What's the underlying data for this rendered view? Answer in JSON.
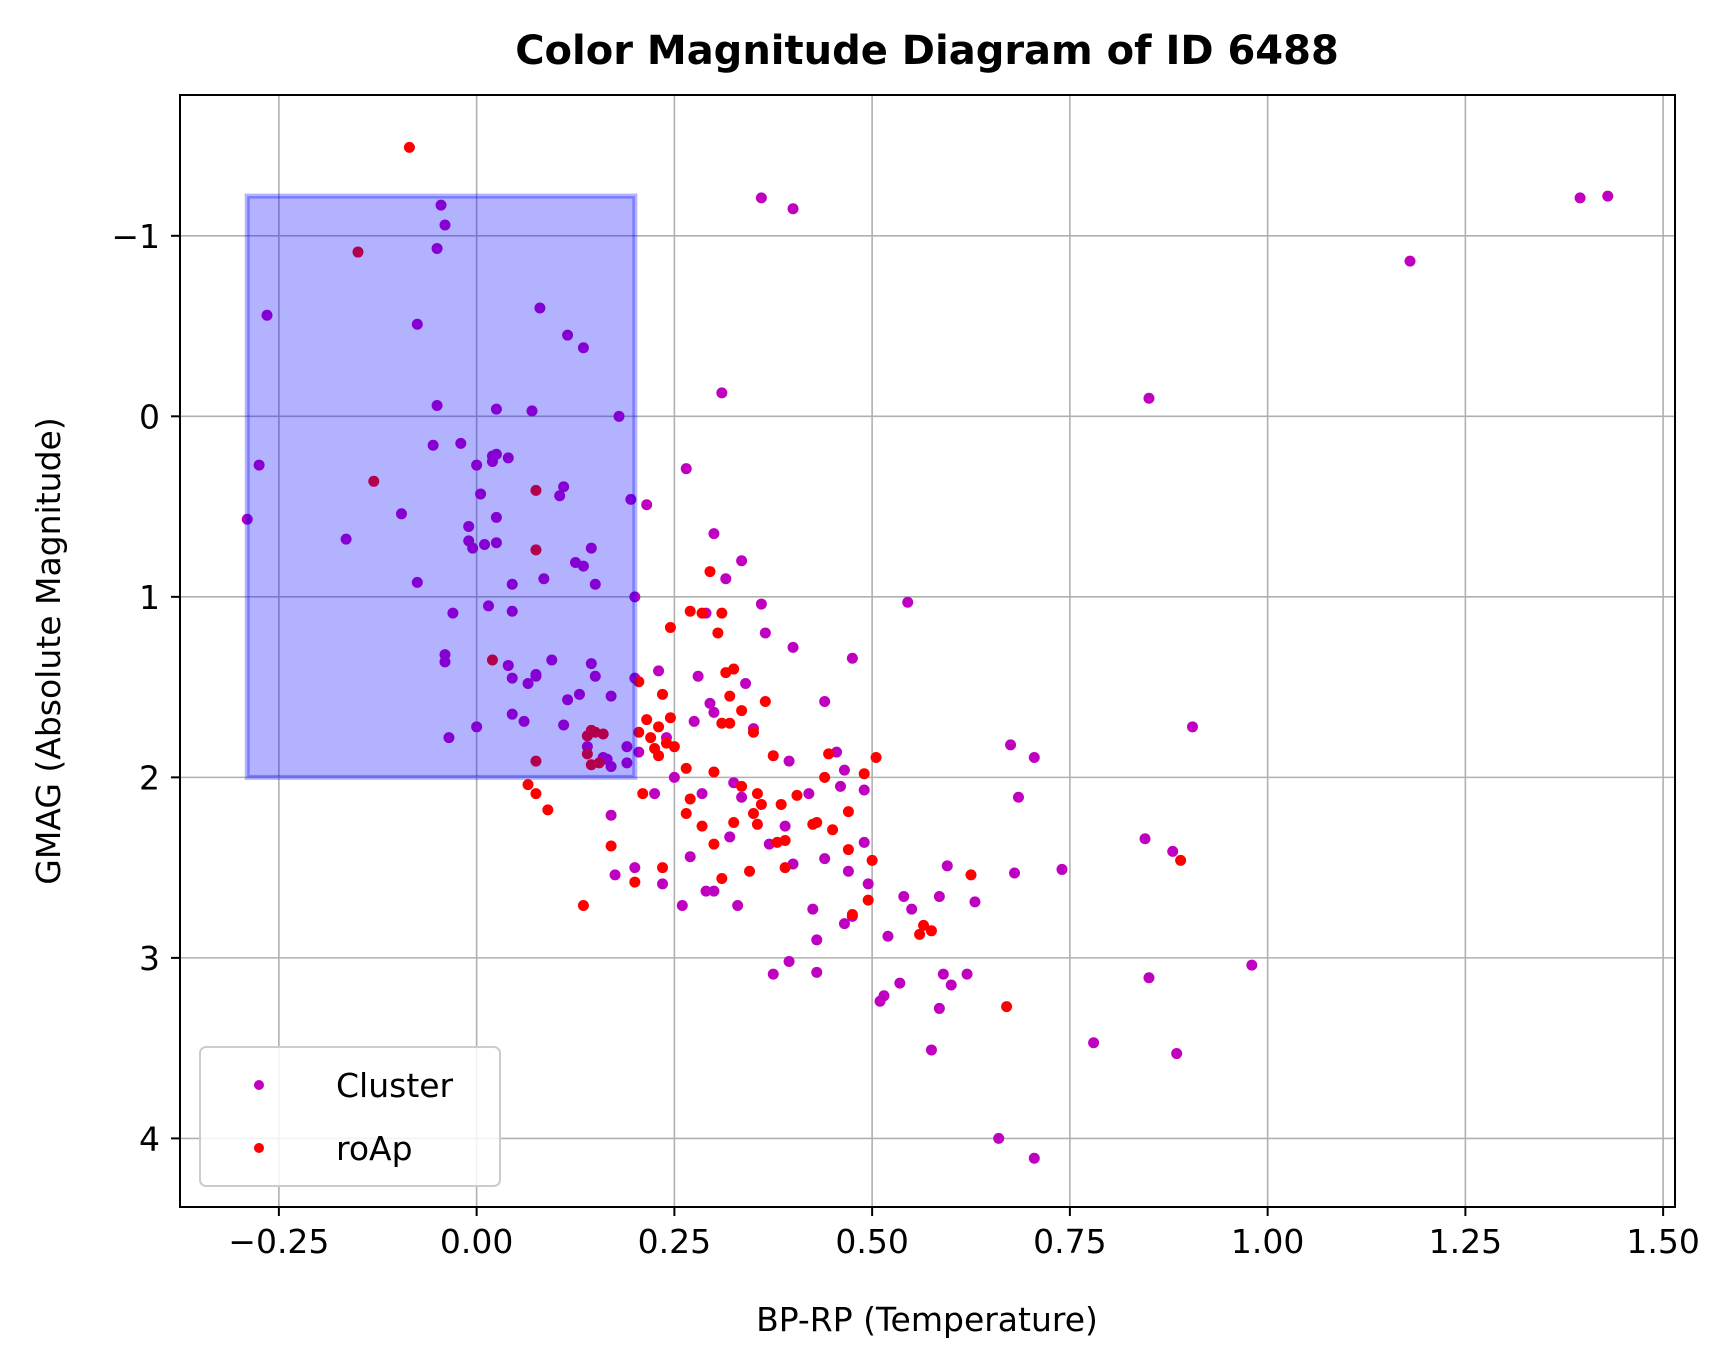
{
  "chart_data": {
    "type": "scatter",
    "title": "Color Magnitude Diagram of ID 6488",
    "xlabel": "BP-RP (Temperature)",
    "ylabel": "GMAG (Absolute Magnitude)",
    "xlim": [
      -0.375,
      1.515
    ],
    "ylim": [
      4.38,
      -1.78
    ],
    "y_inverted": true,
    "grid": true,
    "legend_position": "lower-left",
    "x_ticks": [
      -0.25,
      0.0,
      0.25,
      0.5,
      0.75,
      1.0,
      1.25,
      1.5
    ],
    "x_tick_labels": [
      "−0.25",
      "0.00",
      "0.25",
      "0.50",
      "0.75",
      "1.00",
      "1.25",
      "1.50"
    ],
    "y_ticks": [
      -1,
      0,
      1,
      2,
      3,
      4
    ],
    "y_tick_labels": [
      "−1",
      "0",
      "1",
      "2",
      "3",
      "4"
    ],
    "highlight_region": {
      "x": [
        -0.29,
        0.2
      ],
      "y": [
        -1.22,
        2.0
      ],
      "color": "#0000ff",
      "opacity": 0.3
    },
    "series": [
      {
        "name": "Cluster",
        "color": "#c000c0",
        "points": [
          [
            -0.29,
            0.57
          ],
          [
            -0.275,
            0.27
          ],
          [
            -0.265,
            -0.56
          ],
          [
            -0.165,
            0.68
          ],
          [
            -0.075,
            0.92
          ],
          [
            -0.075,
            -0.51
          ],
          [
            -0.095,
            0.54
          ],
          [
            -0.05,
            -0.06
          ],
          [
            -0.055,
            0.16
          ],
          [
            -0.045,
            -1.17
          ],
          [
            -0.04,
            -1.06
          ],
          [
            -0.05,
            -0.93
          ],
          [
            -0.04,
            1.32
          ],
          [
            -0.04,
            1.36
          ],
          [
            -0.035,
            1.78
          ],
          [
            -0.03,
            1.09
          ],
          [
            -0.02,
            0.15
          ],
          [
            -0.01,
            0.61
          ],
          [
            -0.01,
            0.69
          ],
          [
            -0.005,
            0.73
          ],
          [
            0.0,
            0.27
          ],
          [
            0.0,
            1.72
          ],
          [
            0.005,
            0.43
          ],
          [
            0.01,
            0.71
          ],
          [
            0.015,
            1.05
          ],
          [
            0.02,
            0.22
          ],
          [
            0.02,
            0.25
          ],
          [
            0.025,
            0.21
          ],
          [
            0.025,
            0.7
          ],
          [
            0.025,
            0.56
          ],
          [
            0.025,
            -0.04
          ],
          [
            0.04,
            1.38
          ],
          [
            0.04,
            0.23
          ],
          [
            0.045,
            1.45
          ],
          [
            0.045,
            0.93
          ],
          [
            0.045,
            1.08
          ],
          [
            0.045,
            1.65
          ],
          [
            0.06,
            1.69
          ],
          [
            0.065,
            1.48
          ],
          [
            0.07,
            -0.03
          ],
          [
            0.075,
            1.44
          ],
          [
            0.075,
            1.43
          ],
          [
            0.08,
            -0.6
          ],
          [
            0.085,
            0.9
          ],
          [
            0.095,
            1.35
          ],
          [
            0.105,
            0.44
          ],
          [
            0.11,
            0.39
          ],
          [
            0.11,
            1.71
          ],
          [
            0.115,
            1.57
          ],
          [
            0.115,
            -0.45
          ],
          [
            0.125,
            0.81
          ],
          [
            0.13,
            1.54
          ],
          [
            0.135,
            0.83
          ],
          [
            0.135,
            -0.38
          ],
          [
            0.14,
            1.83
          ],
          [
            0.145,
            0.73
          ],
          [
            0.145,
            1.37
          ],
          [
            0.15,
            0.93
          ],
          [
            0.15,
            1.44
          ],
          [
            0.16,
            1.89
          ],
          [
            0.165,
            1.9
          ],
          [
            0.17,
            1.94
          ],
          [
            0.17,
            1.55
          ],
          [
            0.17,
            2.21
          ],
          [
            0.175,
            2.54
          ],
          [
            0.18,
            -0.0
          ],
          [
            0.19,
            1.83
          ],
          [
            0.19,
            1.92
          ],
          [
            0.195,
            0.46
          ],
          [
            0.2,
            1.0
          ],
          [
            0.2,
            1.45
          ],
          [
            0.2,
            2.5
          ],
          [
            0.205,
            1.86
          ],
          [
            0.215,
            0.49
          ],
          [
            0.225,
            2.09
          ],
          [
            0.23,
            1.41
          ],
          [
            0.235,
            2.59
          ],
          [
            0.24,
            1.78
          ],
          [
            0.25,
            2.0
          ],
          [
            0.26,
            2.71
          ],
          [
            0.265,
            0.29
          ],
          [
            0.27,
            2.44
          ],
          [
            0.275,
            1.69
          ],
          [
            0.28,
            1.44
          ],
          [
            0.285,
            2.09
          ],
          [
            0.29,
            1.09
          ],
          [
            0.295,
            1.59
          ],
          [
            0.29,
            2.63
          ],
          [
            0.3,
            0.65
          ],
          [
            0.3,
            1.64
          ],
          [
            0.3,
            2.63
          ],
          [
            0.31,
            -0.13
          ],
          [
            0.315,
            0.9
          ],
          [
            0.32,
            2.33
          ],
          [
            0.325,
            2.03
          ],
          [
            0.33,
            2.71
          ],
          [
            0.335,
            0.8
          ],
          [
            0.335,
            2.11
          ],
          [
            0.34,
            1.48
          ],
          [
            0.35,
            1.73
          ],
          [
            0.36,
            1.04
          ],
          [
            0.36,
            -1.21
          ],
          [
            0.365,
            1.2
          ],
          [
            0.37,
            2.37
          ],
          [
            0.375,
            3.09
          ],
          [
            0.39,
            2.27
          ],
          [
            0.395,
            3.02
          ],
          [
            0.395,
            1.91
          ],
          [
            0.4,
            1.28
          ],
          [
            0.4,
            -1.15
          ],
          [
            0.4,
            2.48
          ],
          [
            0.42,
            2.09
          ],
          [
            0.425,
            2.73
          ],
          [
            0.43,
            2.9
          ],
          [
            0.43,
            3.08
          ],
          [
            0.44,
            1.58
          ],
          [
            0.44,
            2.45
          ],
          [
            0.455,
            1.86
          ],
          [
            0.46,
            2.05
          ],
          [
            0.465,
            1.96
          ],
          [
            0.465,
            2.81
          ],
          [
            0.47,
            2.52
          ],
          [
            0.475,
            1.34
          ],
          [
            0.475,
            2.77
          ],
          [
            0.49,
            2.36
          ],
          [
            0.49,
            2.07
          ],
          [
            0.495,
            2.59
          ],
          [
            0.51,
            3.24
          ],
          [
            0.515,
            3.21
          ],
          [
            0.52,
            2.88
          ],
          [
            0.535,
            3.14
          ],
          [
            0.54,
            2.66
          ],
          [
            0.545,
            1.03
          ],
          [
            0.55,
            2.73
          ],
          [
            0.575,
            3.51
          ],
          [
            0.585,
            2.66
          ],
          [
            0.585,
            3.28
          ],
          [
            0.59,
            3.09
          ],
          [
            0.595,
            2.49
          ],
          [
            0.6,
            3.15
          ],
          [
            0.62,
            3.09
          ],
          [
            0.63,
            2.69
          ],
          [
            0.66,
            4.0
          ],
          [
            0.675,
            1.82
          ],
          [
            0.68,
            2.53
          ],
          [
            0.685,
            2.11
          ],
          [
            0.705,
            1.89
          ],
          [
            0.705,
            4.11
          ],
          [
            0.74,
            2.51
          ],
          [
            0.78,
            3.47
          ],
          [
            0.845,
            2.34
          ],
          [
            0.85,
            -0.1
          ],
          [
            0.85,
            3.11
          ],
          [
            0.88,
            2.41
          ],
          [
            0.885,
            3.53
          ],
          [
            0.905,
            1.72
          ],
          [
            0.98,
            3.04
          ],
          [
            1.18,
            -0.86
          ],
          [
            1.395,
            -1.21
          ],
          [
            1.43,
            -1.22
          ]
        ]
      },
      {
        "name": "roAp",
        "color": "#ff0000",
        "points": [
          [
            -0.085,
            -1.49
          ],
          [
            -0.15,
            -0.91
          ],
          [
            -0.13,
            0.36
          ],
          [
            0.02,
            1.35
          ],
          [
            0.065,
            2.04
          ],
          [
            0.075,
            2.09
          ],
          [
            0.075,
            0.41
          ],
          [
            0.075,
            0.74
          ],
          [
            0.075,
            1.91
          ],
          [
            0.09,
            2.18
          ],
          [
            0.135,
            2.71
          ],
          [
            0.14,
            1.77
          ],
          [
            0.14,
            1.87
          ],
          [
            0.145,
            1.74
          ],
          [
            0.145,
            1.93
          ],
          [
            0.15,
            1.75
          ],
          [
            0.155,
            1.92
          ],
          [
            0.16,
            1.76
          ],
          [
            0.17,
            2.38
          ],
          [
            0.2,
            2.58
          ],
          [
            0.205,
            1.47
          ],
          [
            0.205,
            1.75
          ],
          [
            0.21,
            2.09
          ],
          [
            0.215,
            1.68
          ],
          [
            0.22,
            1.78
          ],
          [
            0.225,
            1.84
          ],
          [
            0.23,
            1.88
          ],
          [
            0.23,
            1.72
          ],
          [
            0.235,
            1.54
          ],
          [
            0.235,
            2.5
          ],
          [
            0.24,
            1.81
          ],
          [
            0.245,
            1.67
          ],
          [
            0.245,
            1.17
          ],
          [
            0.25,
            1.83
          ],
          [
            0.265,
            2.2
          ],
          [
            0.265,
            1.95
          ],
          [
            0.27,
            2.12
          ],
          [
            0.27,
            1.08
          ],
          [
            0.285,
            1.09
          ],
          [
            0.285,
            2.27
          ],
          [
            0.295,
            0.86
          ],
          [
            0.3,
            1.97
          ],
          [
            0.3,
            2.37
          ],
          [
            0.305,
            1.2
          ],
          [
            0.31,
            1.7
          ],
          [
            0.31,
            1.09
          ],
          [
            0.31,
            2.56
          ],
          [
            0.315,
            1.42
          ],
          [
            0.32,
            1.55
          ],
          [
            0.32,
            1.7
          ],
          [
            0.325,
            1.4
          ],
          [
            0.325,
            2.25
          ],
          [
            0.335,
            1.63
          ],
          [
            0.335,
            2.05
          ],
          [
            0.345,
            2.52
          ],
          [
            0.35,
            1.75
          ],
          [
            0.35,
            2.2
          ],
          [
            0.355,
            2.26
          ],
          [
            0.355,
            2.09
          ],
          [
            0.36,
            2.15
          ],
          [
            0.365,
            1.58
          ],
          [
            0.375,
            1.88
          ],
          [
            0.38,
            2.36
          ],
          [
            0.385,
            2.15
          ],
          [
            0.39,
            2.5
          ],
          [
            0.39,
            2.35
          ],
          [
            0.405,
            2.1
          ],
          [
            0.425,
            2.26
          ],
          [
            0.43,
            2.25
          ],
          [
            0.44,
            2.0
          ],
          [
            0.445,
            1.87
          ],
          [
            0.45,
            2.29
          ],
          [
            0.47,
            2.4
          ],
          [
            0.47,
            2.19
          ],
          [
            0.475,
            2.76
          ],
          [
            0.49,
            1.98
          ],
          [
            0.495,
            2.68
          ],
          [
            0.5,
            2.46
          ],
          [
            0.505,
            1.89
          ],
          [
            0.56,
            2.87
          ],
          [
            0.565,
            2.82
          ],
          [
            0.575,
            2.85
          ],
          [
            0.625,
            2.54
          ],
          [
            0.67,
            3.27
          ],
          [
            0.89,
            2.46
          ]
        ]
      }
    ]
  }
}
